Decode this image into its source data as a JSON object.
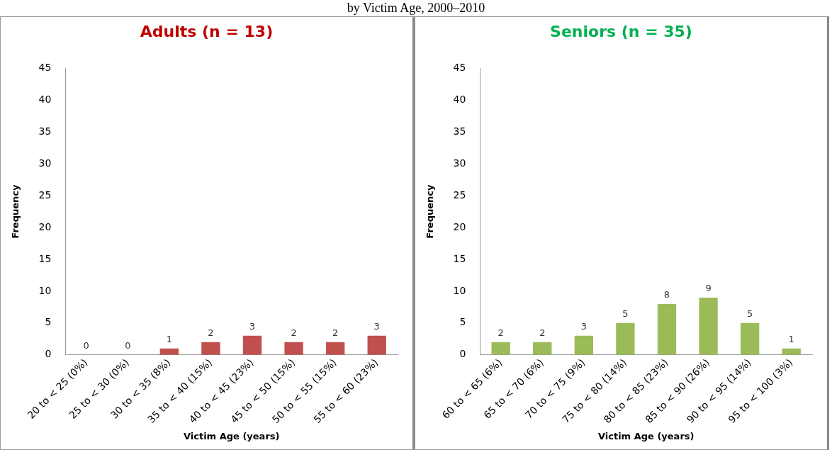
{
  "chart_data": [
    {
      "type": "bar",
      "title": "Adults (n = 13)",
      "xlabel": "Victim Age (years)",
      "ylabel": "Frequency",
      "annotations": [
        "by Victim Age, 2000–2010"
      ],
      "categories": [
        "20 to < 25 (0%)",
        "25 to < 30 (0%)",
        "30 to < 35 (8%)",
        "35 to < 40 (15%)",
        "40 to < 45 (23%)",
        "45 to < 50 (15%)",
        "50 to < 55 (15%)",
        "55 to < 60 (23%)"
      ],
      "values": [
        0,
        0,
        1,
        2,
        3,
        2,
        2,
        3
      ],
      "color": "#c0504d",
      "ylim": [
        0,
        45
      ],
      "yticks": [
        0,
        5,
        10,
        15,
        20,
        25,
        30,
        35,
        40,
        45
      ],
      "grid": false,
      "legend": false,
      "data_labels": true
    },
    {
      "type": "bar",
      "title": "Seniors (n = 35)",
      "xlabel": "Victim Age (years)",
      "ylabel": "Frequency",
      "categories": [
        "60 to < 65 (6%)",
        "65 to < 70 (6%)",
        "70 to < 75 (9%)",
        "75 to < 80 (14%)",
        "80 to < 85 (23%)",
        "85 to < 90 (26%)",
        "90 to < 95 (14%)",
        "95 to < 100 (3%)"
      ],
      "values": [
        2,
        2,
        3,
        5,
        8,
        9,
        5,
        1
      ],
      "color": "#9bbb59",
      "ylim": [
        0,
        45
      ],
      "yticks": [
        0,
        5,
        10,
        15,
        20,
        25,
        30,
        35,
        40,
        45
      ],
      "grid": false,
      "legend": false,
      "data_labels": true
    }
  ]
}
